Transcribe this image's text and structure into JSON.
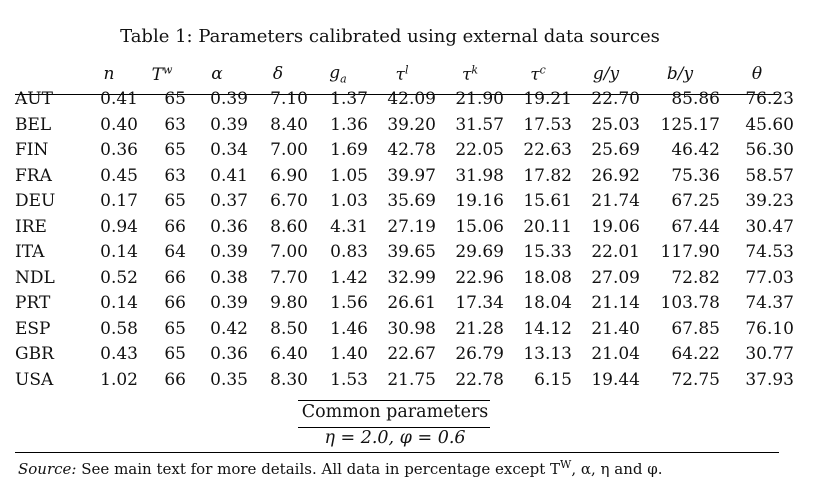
{
  "caption": "Table 1: Parameters calibrated using external data sources",
  "columns": [
    "n",
    "Tw",
    "α",
    "δ",
    "ga",
    "τl",
    "τk",
    "τc",
    "g/y",
    "b/y",
    "θ"
  ],
  "rows": [
    {
      "country": "AUT",
      "values": [
        "0.41",
        "65",
        "0.39",
        "7.10",
        "1.37",
        "42.09",
        "21.90",
        "19.21",
        "22.70",
        "85.86",
        "76.23"
      ]
    },
    {
      "country": "BEL",
      "values": [
        "0.40",
        "63",
        "0.39",
        "8.40",
        "1.36",
        "39.20",
        "31.57",
        "17.53",
        "25.03",
        "125.17",
        "45.60"
      ]
    },
    {
      "country": "FIN",
      "values": [
        "0.36",
        "65",
        "0.34",
        "7.00",
        "1.69",
        "42.78",
        "22.05",
        "22.63",
        "25.69",
        "46.42",
        "56.30"
      ]
    },
    {
      "country": "FRA",
      "values": [
        "0.45",
        "63",
        "0.41",
        "6.90",
        "1.05",
        "39.97",
        "31.98",
        "17.82",
        "26.92",
        "75.36",
        "58.57"
      ]
    },
    {
      "country": "DEU",
      "values": [
        "0.17",
        "65",
        "0.37",
        "6.70",
        "1.03",
        "35.69",
        "19.16",
        "15.61",
        "21.74",
        "67.25",
        "39.23"
      ]
    },
    {
      "country": "IRE",
      "values": [
        "0.94",
        "66",
        "0.36",
        "8.60",
        "4.31",
        "27.19",
        "15.06",
        "20.11",
        "19.06",
        "67.44",
        "30.47"
      ]
    },
    {
      "country": "ITA",
      "values": [
        "0.14",
        "64",
        "0.39",
        "7.00",
        "0.83",
        "39.65",
        "29.69",
        "15.33",
        "22.01",
        "117.90",
        "74.53"
      ]
    },
    {
      "country": "NDL",
      "values": [
        "0.52",
        "66",
        "0.38",
        "7.70",
        "1.42",
        "32.99",
        "22.96",
        "18.08",
        "27.09",
        "72.82",
        "77.03"
      ]
    },
    {
      "country": "PRT",
      "values": [
        "0.14",
        "66",
        "0.39",
        "9.80",
        "1.56",
        "26.61",
        "17.34",
        "18.04",
        "21.14",
        "103.78",
        "74.37"
      ]
    },
    {
      "country": "ESP",
      "values": [
        "0.58",
        "65",
        "0.42",
        "8.50",
        "1.46",
        "30.98",
        "21.28",
        "14.12",
        "21.40",
        "67.85",
        "76.10"
      ]
    },
    {
      "country": "GBR",
      "values": [
        "0.43",
        "65",
        "0.36",
        "6.40",
        "1.40",
        "22.67",
        "26.79",
        "13.13",
        "21.04",
        "64.22",
        "30.77"
      ]
    },
    {
      "country": "USA",
      "values": [
        "1.02",
        "66",
        "0.35",
        "8.30",
        "1.53",
        "21.75",
        "22.78",
        "6.15",
        "19.44",
        "72.75",
        "37.93"
      ]
    }
  ],
  "common": {
    "title": "Common parameters",
    "values": "η = 2.0, φ = 0.6"
  },
  "note": {
    "label": "Source:",
    "text": "See main text for more details. All data in percentage except T",
    "sup": "W",
    "tail": ", α, η and φ."
  }
}
